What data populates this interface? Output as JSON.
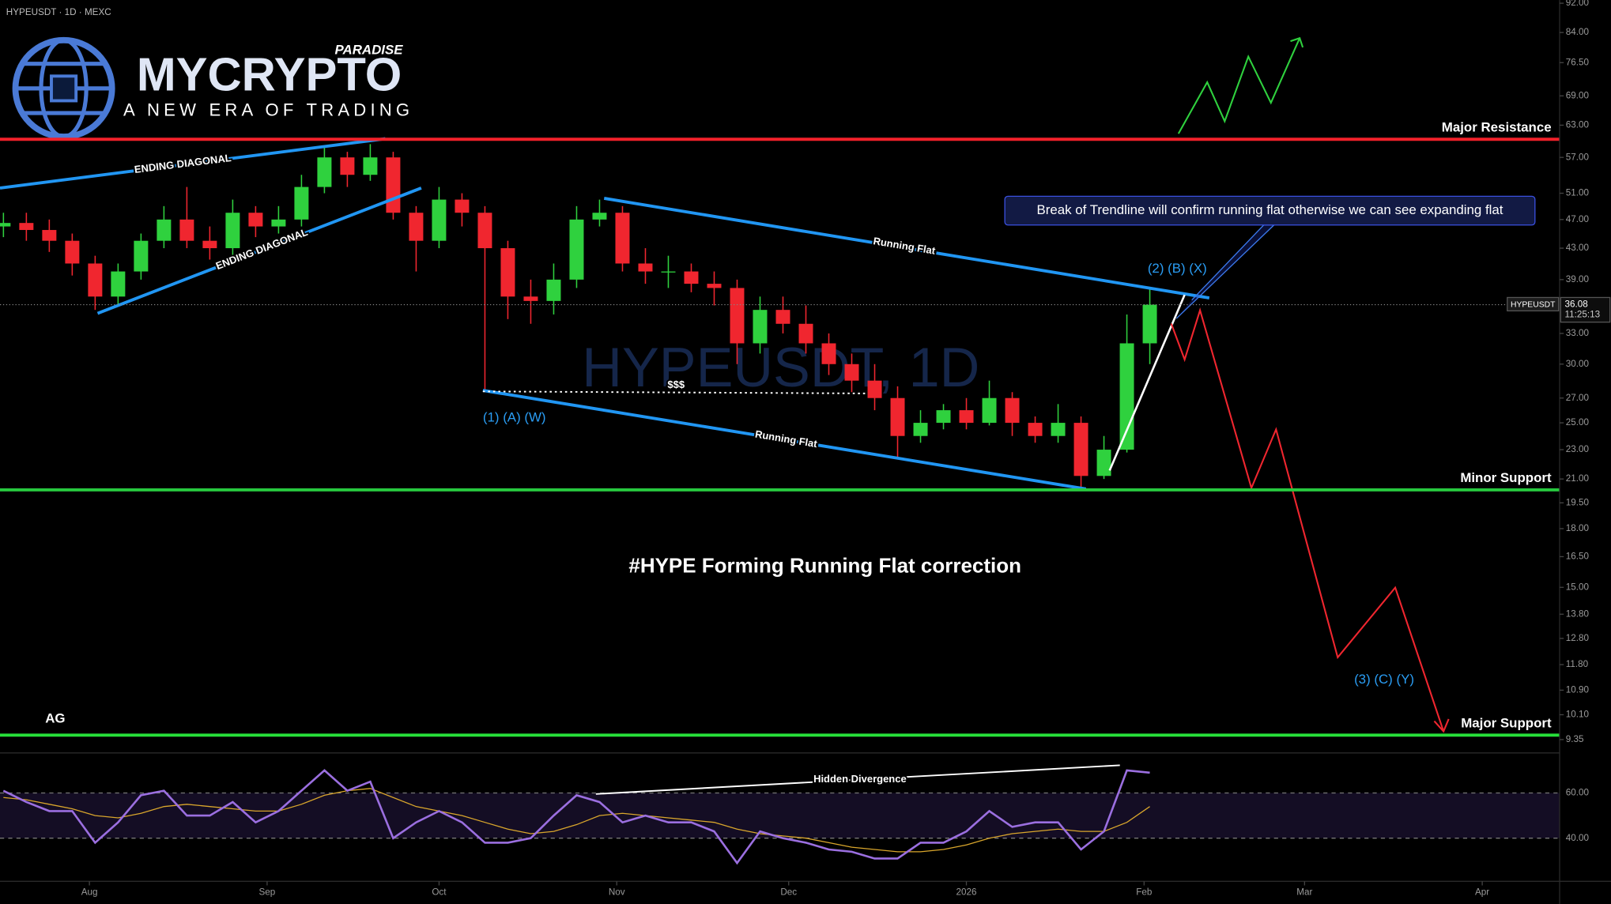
{
  "header": {
    "symbol": "HYPEUSDT · 1D · MEXC"
  },
  "logo": {
    "name": "MYCRYPTO",
    "tag": "PARADISE",
    "slogan": "A NEW ERA OF TRADING"
  },
  "chart_data": {
    "type": "candlestick",
    "watermark": "HYPEUSDT, 1D",
    "x": [
      -15,
      -11,
      -7,
      -3,
      1,
      5,
      9,
      13,
      17,
      21,
      25,
      29,
      33,
      37,
      41,
      45,
      49,
      53,
      57,
      61,
      65,
      69,
      73,
      77,
      81,
      85,
      89,
      93,
      97,
      101,
      105,
      109,
      113,
      117,
      121,
      125,
      129,
      133,
      137,
      141,
      145,
      149,
      153,
      157,
      161,
      165,
      169,
      173,
      177,
      181,
      185
    ],
    "ohlc": [
      [
        46,
        48,
        44.5,
        46.5
      ],
      [
        46.5,
        48,
        44,
        45.5
      ],
      [
        45.5,
        47,
        42.5,
        44
      ],
      [
        44,
        45,
        39.5,
        41
      ],
      [
        41,
        42,
        35.5,
        37
      ],
      [
        37,
        41,
        36,
        40
      ],
      [
        40,
        45,
        39,
        44
      ],
      [
        44,
        49,
        43,
        47
      ],
      [
        47,
        52,
        43,
        44
      ],
      [
        44,
        46,
        41.5,
        43
      ],
      [
        43,
        50,
        42,
        48
      ],
      [
        48,
        49,
        44.5,
        46
      ],
      [
        46,
        49,
        45,
        47
      ],
      [
        47,
        54,
        46,
        52
      ],
      [
        52,
        59,
        51,
        57
      ],
      [
        57,
        58,
        52,
        54
      ],
      [
        54,
        59.4,
        53,
        57
      ],
      [
        57,
        58,
        47,
        48
      ],
      [
        48,
        49,
        40,
        44
      ],
      [
        44,
        52,
        43,
        50
      ],
      [
        50,
        51,
        46,
        48
      ],
      [
        48,
        49,
        27.6,
        43
      ],
      [
        43,
        44,
        34.5,
        37
      ],
      [
        37,
        39,
        34,
        36.5
      ],
      [
        36.5,
        41,
        35,
        39
      ],
      [
        39,
        49,
        38,
        47
      ],
      [
        47,
        50,
        46,
        48
      ],
      [
        48,
        49,
        40,
        41
      ],
      [
        41,
        43,
        38.5,
        40
      ],
      [
        40,
        42,
        38,
        40
      ],
      [
        40,
        41,
        37.5,
        38.5
      ],
      [
        38.5,
        40,
        36,
        38
      ],
      [
        38,
        39,
        30,
        32
      ],
      [
        32,
        37,
        31,
        35.5
      ],
      [
        35.5,
        37,
        33,
        34
      ],
      [
        34,
        36,
        31,
        32
      ],
      [
        32,
        33,
        29,
        30
      ],
      [
        30,
        31,
        27.5,
        28.5
      ],
      [
        28.5,
        30,
        26,
        27
      ],
      [
        27,
        28,
        22.5,
        24
      ],
      [
        24,
        26,
        23.5,
        25
      ],
      [
        25,
        26.5,
        24.5,
        26
      ],
      [
        26,
        27,
        24.5,
        25
      ],
      [
        25,
        28.5,
        24.8,
        27
      ],
      [
        27,
        27.5,
        24,
        25
      ],
      [
        25,
        25.5,
        23.5,
        24
      ],
      [
        24,
        26.5,
        23.5,
        25
      ],
      [
        25,
        25.5,
        20.5,
        21.2
      ],
      [
        21.2,
        24,
        21,
        23
      ],
      [
        23,
        35,
        22.8,
        32
      ],
      [
        32,
        38,
        30,
        36.08
      ]
    ],
    "up_color": "#2fd13e",
    "down_color": "#f0262f",
    "xlim": [
      -15.6,
      256.5
    ],
    "xticks": [
      {
        "value": 0,
        "label": "Aug"
      },
      {
        "value": 31,
        "label": "Sep"
      },
      {
        "value": 61,
        "label": "Oct"
      },
      {
        "value": 92,
        "label": "Nov"
      },
      {
        "value": 122,
        "label": "Dec"
      },
      {
        "value": 153,
        "label": "2026"
      },
      {
        "value": 184,
        "label": "Feb"
      },
      {
        "value": 212,
        "label": "Mar"
      },
      {
        "value": 243,
        "label": "Apr"
      }
    ],
    "ylim": [
      8.97,
      92.9
    ],
    "log_scale": true,
    "yticks": [
      {
        "value": 92,
        "label": "92.00"
      },
      {
        "value": 84,
        "label": "84.00"
      },
      {
        "value": 76.5,
        "label": "76.50"
      },
      {
        "value": 69,
        "label": "69.00"
      },
      {
        "value": 63,
        "label": "63.00"
      },
      {
        "value": 57,
        "label": "57.00"
      },
      {
        "value": 51,
        "label": "51.00"
      },
      {
        "value": 47,
        "label": "47.00"
      },
      {
        "value": 43,
        "label": "43.00"
      },
      {
        "value": 39,
        "label": "39.00"
      },
      {
        "value": 33,
        "label": "33.00"
      },
      {
        "value": 30,
        "label": "30.00"
      },
      {
        "value": 27,
        "label": "27.00"
      },
      {
        "value": 25,
        "label": "25.00"
      },
      {
        "value": 23,
        "label": "23.00"
      },
      {
        "value": 21,
        "label": "21.00"
      },
      {
        "value": 19.5,
        "label": "19.50"
      },
      {
        "value": 18,
        "label": "18.00"
      },
      {
        "value": 16.5,
        "label": "16.50"
      },
      {
        "value": 15,
        "label": "15.00"
      },
      {
        "value": 13.8,
        "label": "13.80"
      },
      {
        "value": 12.8,
        "label": "12.80"
      },
      {
        "value": 11.8,
        "label": "11.80"
      },
      {
        "value": 10.9,
        "label": "10.90"
      },
      {
        "value": 10.1,
        "label": "10.10"
      },
      {
        "value": 9.35,
        "label": "9.35"
      }
    ],
    "last_price": {
      "value": 36.08,
      "label": "HYPEUSDT",
      "countdown": "11:25:13"
    },
    "levels": [
      {
        "label": "Major Resistance",
        "value": 60.3,
        "color": "#f2212a"
      },
      {
        "label": "Minor Support",
        "value": 20.3,
        "color": "#27c93f"
      },
      {
        "label": "Major Support",
        "value": 9.48,
        "color": "#27e03a"
      }
    ],
    "annotations": {
      "ag": "AG",
      "diag1": "ENDING DIAGONAL",
      "diag2": "ENDING DIAGONAL",
      "flat1": "Running Flat",
      "flat2": "Running Flat",
      "liq": "$$$",
      "wave1": "(1) (A)  (W)",
      "wave2": "(2)  (B)  (X)",
      "wave3": "(3)  (C)  (Y)",
      "callout": "Break of Trendline will confirm running flat otherwise we can see expanding flat",
      "headline": "#HYPE Forming Running Flat correction",
      "divergence": "Hidden Divergence"
    },
    "rsi": {
      "values": [
        61,
        56,
        52,
        52,
        38,
        47,
        59,
        61,
        50,
        50,
        56,
        47,
        52,
        61,
        70,
        61,
        65,
        40,
        47,
        52,
        47,
        38,
        38,
        40,
        50,
        59,
        56,
        47,
        50,
        47,
        47,
        43,
        29,
        43,
        40,
        38,
        35,
        34,
        31,
        31,
        38,
        38,
        43,
        52,
        45,
        47,
        47,
        35,
        43,
        70,
        69
      ],
      "ma": [
        58,
        57,
        55,
        53,
        50,
        49,
        51,
        54,
        55,
        54,
        53,
        52,
        52,
        55,
        59,
        61,
        62,
        58,
        54,
        52,
        50,
        47,
        44,
        42,
        43,
        46,
        50,
        51,
        50,
        49,
        48,
        47,
        44,
        42,
        41,
        40,
        38,
        36,
        35,
        34,
        34,
        35,
        37,
        40,
        42,
        43,
        44,
        43,
        43,
        47,
        54
      ],
      "color": "#9b6fe0",
      "ma_color": "#d9a62c",
      "ylim": [
        20.9,
        76.8
      ],
      "yticks": [
        {
          "value": 60,
          "label": "60.00"
        },
        {
          "value": 40,
          "label": "40.00"
        }
      ]
    }
  }
}
